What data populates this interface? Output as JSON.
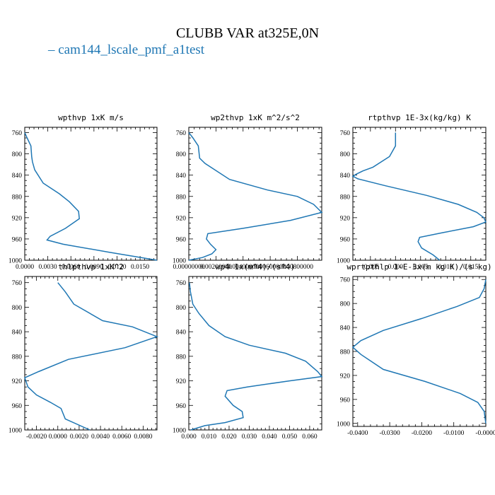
{
  "title": "CLUBB VAR at325E,0N",
  "legend": [
    {
      "name": "cam144_lscale_pmf_a1test",
      "color": "#1f77b4"
    }
  ],
  "chart_data": [
    {
      "type": "line",
      "title": "wpthvp  1xK m/s",
      "xlim": [
        0,
        0.0172
      ],
      "xticks": [
        "0.0000",
        "0.0030",
        "0.0060",
        "0.0090",
        "0.0120",
        "0.0150"
      ],
      "xtick_values": [
        0,
        0.003,
        0.006,
        0.009,
        0.012,
        0.015
      ],
      "ylim": [
        1000,
        750
      ],
      "yticks": [
        760,
        800,
        840,
        880,
        920,
        960,
        1000
      ],
      "series": [
        {
          "x": [
            0,
            0.0003,
            0.0008,
            0.0009,
            0.001,
            0.0013,
            0.0024,
            0.0045,
            0.0058,
            0.007,
            0.0071,
            0.0053,
            0.0033,
            0.0029,
            0.005,
            0.011,
            0.0172
          ],
          "y": [
            760,
            770,
            785,
            805,
            815,
            830,
            855,
            875,
            890,
            908,
            922,
            940,
            955,
            962,
            970,
            985,
            1000
          ]
        }
      ]
    },
    {
      "type": "line",
      "title": "wp2thvp  1xK m^2/s^2",
      "xlim": [
        0,
        0.0098
      ],
      "xticks": [
        "0.00000000",
        "0.00200000",
        "0.00400000",
        "0.00600000",
        "0.00800000"
      ],
      "xtick_values": [
        0,
        0.002,
        0.004,
        0.006,
        0.008
      ],
      "ylim": [
        1000,
        750
      ],
      "yticks": [
        760,
        800,
        840,
        880,
        920,
        960,
        1000
      ],
      "series": [
        {
          "x": [
            0,
            0.0003,
            0.0007,
            0.0008,
            0.0012,
            0.003,
            0.0058,
            0.008,
            0.0092,
            0.0098,
            0.0075,
            0.004,
            0.0014,
            0.0013,
            0.0016,
            0.002,
            0.0017,
            0.001,
            0.0
          ],
          "y": [
            760,
            770,
            785,
            808,
            818,
            848,
            868,
            880,
            895,
            910,
            925,
            940,
            950,
            960,
            970,
            980,
            988,
            995,
            1000
          ]
        }
      ]
    },
    {
      "type": "line",
      "title": "rtpthvp  1E-3x(kg/kg) K",
      "xlim": [
        -0.0085,
        0.018
      ],
      "xticks": [
        "-0.005",
        "0.000",
        "0.005",
        "0.010",
        "0.015"
      ],
      "xtick_values": [
        -0.005,
        0,
        0.005,
        0.01,
        0.015
      ],
      "ylim": [
        1000,
        750
      ],
      "yticks": [
        760,
        800,
        840,
        880,
        920,
        960,
        1000
      ],
      "series": [
        {
          "x": [
            0,
            0,
            -0.0012,
            -0.0045,
            -0.0065,
            -0.0078,
            -0.0085,
            -0.0075,
            -0.002,
            0.0062,
            0.0125,
            0.0162,
            0.0176,
            0.018,
            0.0155,
            0.0095,
            0.0048,
            0.0045,
            0.0052,
            0.0075,
            0.0088
          ],
          "y": [
            760,
            785,
            805,
            825,
            832,
            838,
            842,
            847,
            860,
            878,
            895,
            910,
            920,
            928,
            937,
            948,
            957,
            965,
            977,
            990,
            1000
          ]
        }
      ]
    },
    {
      "type": "line",
      "title": "thlpthvp  1xK^2",
      "xlim": [
        -0.0031,
        0.0093
      ],
      "xticks": [
        "-0.0020",
        "0.0000",
        "0.0020",
        "0.0040",
        "0.0060",
        "0.0080"
      ],
      "xtick_values": [
        -0.002,
        0,
        0.002,
        0.004,
        0.006,
        0.008
      ],
      "ylim": [
        1000,
        750
      ],
      "yticks": [
        760,
        800,
        840,
        880,
        920,
        960,
        1000
      ],
      "series": [
        {
          "x": [
            0.0,
            0.0007,
            0.0015,
            0.0042,
            0.007,
            0.0093,
            0.0063,
            0.001,
            -0.0018,
            -0.0031,
            -0.0028,
            -0.002,
            -0.0007,
            0.0003,
            0.0007,
            0.003
          ],
          "y": [
            760,
            775,
            795,
            822,
            832,
            848,
            866,
            885,
            905,
            915,
            930,
            943,
            955,
            965,
            982,
            1000
          ]
        }
      ]
    },
    {
      "type": "line",
      "title": "wp4  1x(m^4)/(s^4)",
      "xlim": [
        0,
        0.066
      ],
      "xticks": [
        "0.000",
        "0.010",
        "0.020",
        "0.030",
        "0.040",
        "0.050",
        "0.060"
      ],
      "xtick_values": [
        0,
        0.01,
        0.02,
        0.03,
        0.04,
        0.05,
        0.06
      ],
      "ylim": [
        1000,
        750
      ],
      "yticks": [
        760,
        800,
        840,
        880,
        920,
        960,
        1000
      ],
      "series": [
        {
          "x": [
            0.0003,
            0.0008,
            0.002,
            0.005,
            0.01,
            0.018,
            0.03,
            0.048,
            0.058,
            0.064,
            0.066,
            0.05,
            0.029,
            0.019,
            0.018,
            0.022,
            0.0265,
            0.027,
            0.018,
            0.008,
            0.001
          ],
          "y": [
            760,
            775,
            795,
            810,
            830,
            848,
            862,
            875,
            888,
            905,
            913,
            920,
            930,
            936,
            945,
            960,
            970,
            980,
            988,
            993,
            1000
          ]
        }
      ]
    },
    {
      "type": "line",
      "title": "wprtpthlp  1-E-3x(m kg K)/(s kg)",
      "xlim": [
        -0.0415,
        0.0
      ],
      "xticks": [
        "-0.0400",
        "-0.0300",
        "-0.0200",
        "-0.0100",
        "-0.0000"
      ],
      "xtick_values": [
        -0.04,
        -0.03,
        -0.02,
        -0.01,
        0.0
      ],
      "ylim": [
        1005,
        755
      ],
      "yticks": [
        760,
        800,
        840,
        880,
        920,
        960,
        1000
      ],
      "series": [
        {
          "x": [
            0.0,
            -0.0005,
            -0.002,
            -0.009,
            -0.02,
            -0.032,
            -0.039,
            -0.0415,
            -0.039,
            -0.032,
            -0.019,
            -0.008,
            -0.0025,
            -0.0005,
            0.0
          ],
          "y": [
            760,
            775,
            790,
            805,
            825,
            845,
            862,
            873,
            885,
            910,
            930,
            950,
            965,
            980,
            1000
          ]
        }
      ]
    }
  ]
}
